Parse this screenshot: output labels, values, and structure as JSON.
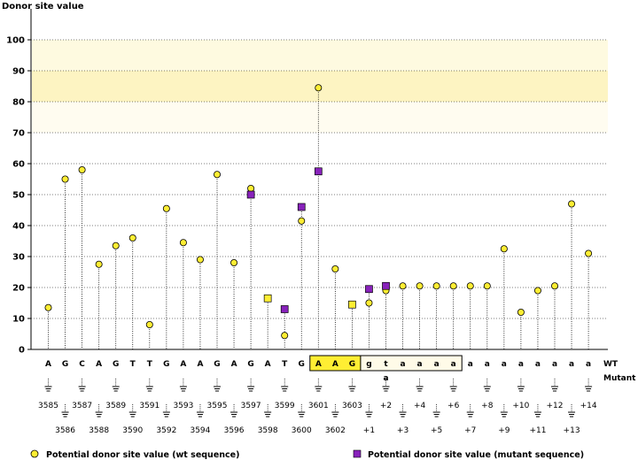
{
  "chart_data": {
    "type": "lollipop",
    "ylabel": "Donor site value",
    "ylim": [
      0,
      100
    ],
    "yticks": [
      0,
      10,
      20,
      30,
      40,
      50,
      60,
      70,
      80,
      90,
      100
    ],
    "highlight_bands": [
      [
        80,
        90
      ],
      [
        90,
        100
      ],
      [
        70,
        80
      ]
    ],
    "bases": [
      "A",
      "G",
      "C",
      "A",
      "G",
      "T",
      "T",
      "G",
      "A",
      "A",
      "G",
      "A",
      "G",
      "A",
      "T",
      "G",
      "A",
      "A",
      "G",
      "g",
      "t",
      "a",
      "a",
      "a",
      "a",
      "a",
      "a",
      "a",
      "a",
      "a",
      "a",
      "a",
      "a"
    ],
    "positions": [
      "3585",
      "3586",
      "3587",
      "3588",
      "3589",
      "3590",
      "3591",
      "3592",
      "3593",
      "3594",
      "3595",
      "3596",
      "3597",
      "3598",
      "3599",
      "3600",
      "3601",
      "3602",
      "3603",
      "+1",
      "+2",
      "+3",
      "+4",
      "+5",
      "+6",
      "+7",
      "+8",
      "+9",
      "+10",
      "+11",
      "+12",
      "+13",
      "+14"
    ],
    "exon_box_indices": [
      16,
      17,
      18
    ],
    "intron_box_indices": [
      19,
      20,
      21,
      22,
      23,
      24
    ],
    "mutant_base": {
      "index": 20,
      "base": "a"
    },
    "row_labels": {
      "wt": "WT",
      "mutant": "Mutant"
    },
    "series": [
      {
        "name": "Potential donor site value (wt sequence)",
        "marker": "circle",
        "color": "#ffee33",
        "values": [
          13.5,
          55,
          58,
          27.5,
          33.5,
          36,
          8,
          45.5,
          34.5,
          29,
          56.5,
          28,
          52,
          16.5,
          4.5,
          41.5,
          84.5,
          26,
          14.5,
          15,
          19,
          20.5,
          20.5,
          20.5,
          20.5,
          20.5,
          20.5,
          32.5,
          12,
          19,
          20.5,
          47,
          31
        ]
      },
      {
        "name": "Potential donor site value (mutant sequence)",
        "marker": "square",
        "color": "#8822bb",
        "points": [
          [
            12,
            50
          ],
          [
            13,
            16.5
          ],
          [
            14,
            13
          ],
          [
            15,
            46
          ],
          [
            16,
            57.5
          ],
          [
            18,
            14.5
          ],
          [
            19,
            19.5
          ],
          [
            20,
            20.5
          ]
        ]
      }
    ],
    "legend": {
      "wt": "Potential donor site value (wt sequence)",
      "mutant": "Potential donor site value (mutant sequence)"
    }
  }
}
